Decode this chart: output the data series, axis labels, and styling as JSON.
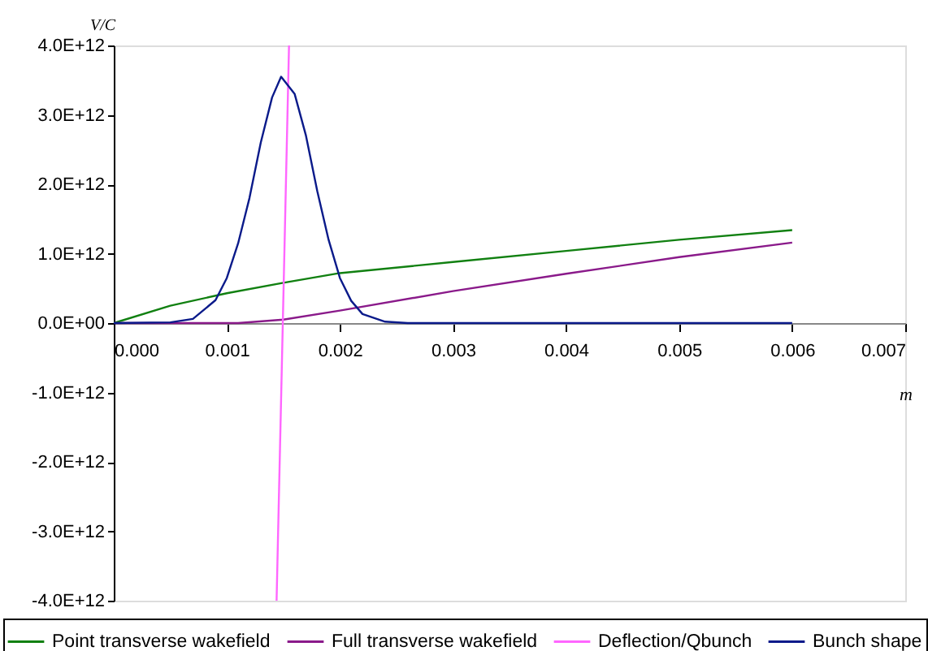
{
  "chart_data": {
    "type": "line",
    "xlabel": "m",
    "ylabel": "V/C",
    "xlim": [
      0,
      0.007
    ],
    "ylim": [
      -4000000000000,
      4000000000000
    ],
    "xticks": [
      {
        "value": 0,
        "label": "0.000"
      },
      {
        "value": 0.001,
        "label": "0.001"
      },
      {
        "value": 0.002,
        "label": "0.002"
      },
      {
        "value": 0.003,
        "label": "0.003"
      },
      {
        "value": 0.004,
        "label": "0.004"
      },
      {
        "value": 0.005,
        "label": "0.005"
      },
      {
        "value": 0.006,
        "label": "0.006"
      },
      {
        "value": 0.007,
        "label": "0.007"
      }
    ],
    "yticks": [
      {
        "value": -4000000000000,
        "label": "-4.0E+12"
      },
      {
        "value": -3000000000000,
        "label": "-3.0E+12"
      },
      {
        "value": -2000000000000,
        "label": "-2.0E+12"
      },
      {
        "value": -1000000000000,
        "label": "-1.0E+12"
      },
      {
        "value": 0,
        "label": "0.0E+00"
      },
      {
        "value": 1000000000000,
        "label": "1.0E+12"
      },
      {
        "value": 2000000000000,
        "label": "2.0E+12"
      },
      {
        "value": 3000000000000,
        "label": "3.0E+12"
      },
      {
        "value": 4000000000000,
        "label": "4.0E+12"
      }
    ],
    "grid": false,
    "legend": "bottom",
    "marker": "none",
    "line_style": "solid",
    "series": [
      {
        "name": "Point transverse wakefield",
        "color": "#118011",
        "x": [
          0,
          0.0005,
          0.001,
          0.0015,
          0.002,
          0.003,
          0.004,
          0.005,
          0.006
        ],
        "values": [
          0,
          250000000000,
          430000000000,
          580000000000,
          720000000000,
          880000000000,
          1040000000000,
          1200000000000,
          1340000000000
        ]
      },
      {
        "name": "Full transverse wakefield",
        "color": "#8a1a8a",
        "x": [
          0,
          0.001,
          0.0011,
          0.0015,
          0.002,
          0.003,
          0.004,
          0.005,
          0.006
        ],
        "values": [
          0,
          0,
          0,
          50000000000,
          180000000000,
          460000000000,
          710000000000,
          950000000000,
          1160000000000
        ]
      },
      {
        "name": "Deflection/Qbunch",
        "color": "#ff66ff",
        "x": [
          0.00144,
          0.00155
        ],
        "values": [
          -4000000000000,
          4000000000000
        ]
      },
      {
        "name": "Bunch shape",
        "color": "#0a1a8a",
        "x": [
          0,
          0.0005,
          0.0007,
          0.0009,
          0.001,
          0.0011,
          0.0012,
          0.0013,
          0.0014,
          0.00148,
          0.0016,
          0.0017,
          0.0018,
          0.0019,
          0.002,
          0.0021,
          0.0022,
          0.0024,
          0.0026,
          0.006
        ],
        "values": [
          0,
          10000000000,
          60000000000,
          330000000000,
          650000000000,
          1150000000000,
          1800000000000,
          2600000000000,
          3250000000000,
          3550000000000,
          3300000000000,
          2700000000000,
          1900000000000,
          1200000000000,
          650000000000,
          320000000000,
          130000000000,
          20000000000,
          0,
          0
        ]
      }
    ]
  }
}
